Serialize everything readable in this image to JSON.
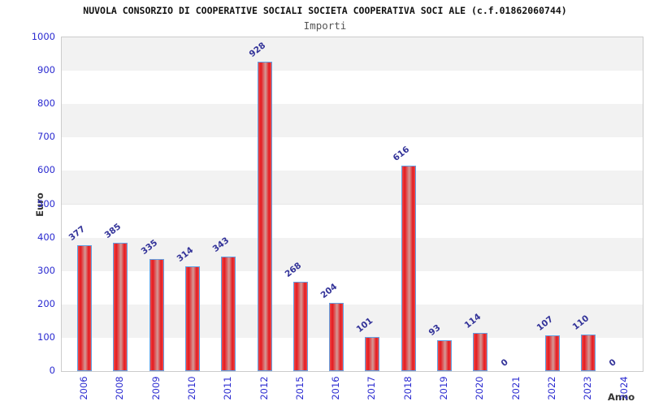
{
  "chart_data": {
    "type": "bar",
    "title": "NUVOLA CONSORZIO DI COOPERATIVE SOCIALI SOCIETA COOPERATIVA SOCI ALE (c.f.01862060744)",
    "subtitle": "Importi",
    "xlabel": "Anno",
    "ylabel": "Euro",
    "categories": [
      "2006",
      "2008",
      "2009",
      "2010",
      "2011",
      "2012",
      "2015",
      "2016",
      "2017",
      "2018",
      "2019",
      "2020",
      "2021",
      "2022",
      "2023",
      "2024"
    ],
    "values": [
      377,
      385,
      335,
      314,
      343,
      928,
      268,
      204,
      101,
      616,
      93,
      114,
      0,
      107,
      110,
      0
    ],
    "ylim": [
      0,
      1000
    ],
    "ytick_step": 100,
    "grid": "horizontal-bands",
    "legend": "none",
    "colors": {
      "tick_label": "#2a2ad0",
      "value_label": "#333399",
      "bar_border": "#62a1e3",
      "bar_fill_main": "#e51a20",
      "bar_fill_light": "#ef4a48",
      "bar_fill_highlight": "#d49a96",
      "band_gray": "#f2f2f2",
      "band_white": "#ffffff",
      "gridline": "#e6e6e6",
      "plot_border": "#cccccc"
    }
  }
}
